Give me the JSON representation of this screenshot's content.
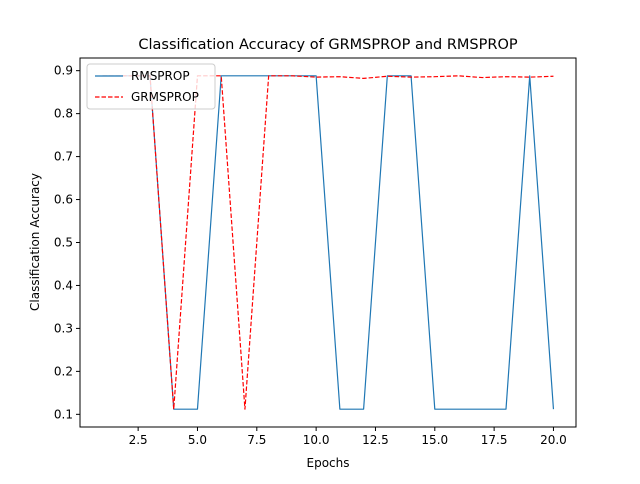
{
  "chart_data": {
    "type": "line",
    "title": "Classification Accuracy of GRMSPROP and RMSPROP",
    "xlabel": "Epochs",
    "ylabel": "Classification Accuracy",
    "xlim": [
      0.05,
      20.95
    ],
    "ylim": [
      0.0705,
      0.9295
    ],
    "xticks": [
      2.5,
      5.0,
      7.5,
      10.0,
      12.5,
      15.0,
      17.5,
      20.0
    ],
    "xtick_labels": [
      "2.5",
      "5.0",
      "7.5",
      "10.0",
      "12.5",
      "15.0",
      "17.5",
      "20.0"
    ],
    "yticks": [
      0.1,
      0.2,
      0.3,
      0.4,
      0.5,
      0.6,
      0.7,
      0.8,
      0.9
    ],
    "ytick_labels": [
      "0.1",
      "0.2",
      "0.3",
      "0.4",
      "0.5",
      "0.6",
      "0.7",
      "0.8",
      "0.9"
    ],
    "grid": false,
    "legend_position": "top-left",
    "x": [
      1,
      2,
      3,
      4,
      5,
      6,
      7,
      8,
      9,
      10,
      11,
      12,
      13,
      14,
      15,
      16,
      17,
      18,
      19,
      20
    ],
    "series": [
      {
        "name": "RMSPROP",
        "color": "#1f77b4",
        "style": "solid",
        "values": [
          0.888,
          0.888,
          0.888,
          0.112,
          0.112,
          0.888,
          0.888,
          0.888,
          0.888,
          0.888,
          0.112,
          0.112,
          0.888,
          0.888,
          0.112,
          0.112,
          0.112,
          0.112,
          0.888,
          0.112
        ]
      },
      {
        "name": "GRMSPROP",
        "color": "#ff0000",
        "style": "dashed",
        "values": [
          0.888,
          0.888,
          0.888,
          0.112,
          0.888,
          0.888,
          0.112,
          0.888,
          0.888,
          0.885,
          0.886,
          0.882,
          0.887,
          0.885,
          0.886,
          0.888,
          0.884,
          0.886,
          0.885,
          0.887
        ]
      }
    ]
  }
}
